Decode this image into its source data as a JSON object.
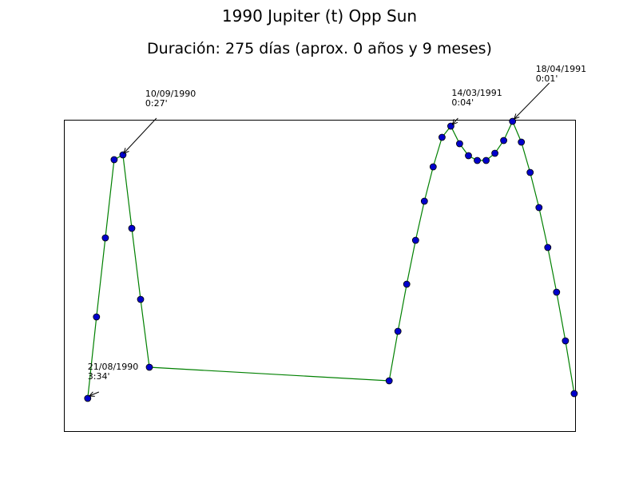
{
  "chart_data": {
    "type": "line",
    "title": "1990 Jupiter (t) Opp Sun",
    "subtitle": "Duración: 275 días (aprox. 0 años y 9 meses)",
    "xlabel": "",
    "ylabel": "",
    "xlim": [
      0,
      58
    ],
    "ylim": [
      0,
      39
    ],
    "grid": false,
    "line_color": "#008000",
    "marker_color": "#0000cc",
    "series": [
      {
        "values": [
          [
            2.7,
            4.1
          ],
          [
            3.7,
            14.3
          ],
          [
            4.7,
            24.2
          ],
          [
            5.7,
            34.0
          ],
          [
            6.7,
            34.6
          ],
          [
            7.7,
            25.4
          ],
          [
            8.7,
            16.5
          ],
          [
            9.7,
            8.0
          ],
          [
            36.9,
            6.3
          ],
          [
            37.9,
            12.5
          ],
          [
            38.9,
            18.4
          ],
          [
            39.9,
            23.9
          ],
          [
            40.9,
            28.8
          ],
          [
            41.9,
            33.1
          ],
          [
            42.9,
            36.8
          ],
          [
            43.9,
            38.2
          ],
          [
            44.9,
            36.0
          ],
          [
            45.9,
            34.5
          ],
          [
            46.9,
            33.9
          ],
          [
            47.9,
            33.9
          ],
          [
            48.9,
            34.8
          ],
          [
            49.9,
            36.4
          ],
          [
            50.9,
            38.8
          ],
          [
            51.9,
            36.2
          ],
          [
            52.9,
            32.4
          ],
          [
            53.9,
            28.0
          ],
          [
            54.9,
            23.0
          ],
          [
            55.9,
            17.4
          ],
          [
            56.9,
            11.3
          ],
          [
            57.9,
            4.7
          ]
        ]
      }
    ],
    "annotations": [
      {
        "date": "21/08/1990",
        "value": "3:34'",
        "point_index": 0
      },
      {
        "date": "10/09/1990",
        "value": "0:27'",
        "point_index": 4
      },
      {
        "date": "14/03/1991",
        "value": "0:04'",
        "point_index": 15
      },
      {
        "date": "18/04/1991",
        "value": "0:01'",
        "point_index": 22
      }
    ]
  }
}
